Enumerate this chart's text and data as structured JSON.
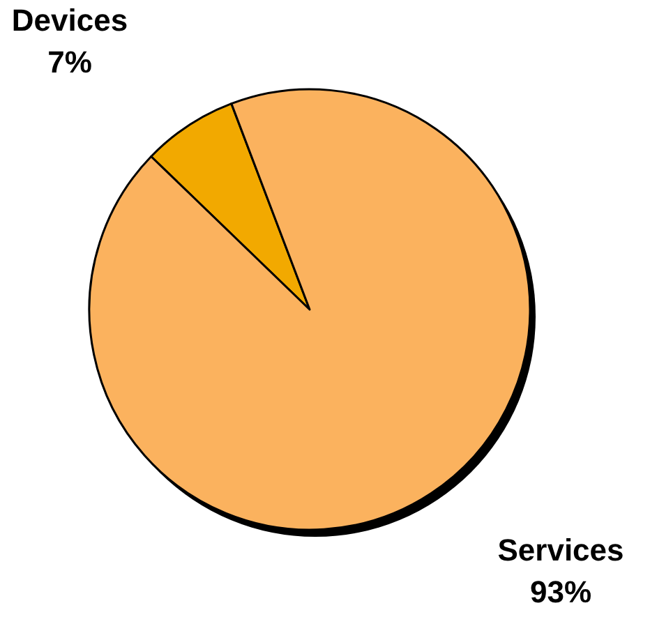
{
  "chart_data": {
    "type": "pie",
    "categories": [
      "Devices",
      "Services"
    ],
    "values": [
      7,
      93
    ],
    "value_labels": [
      "7%",
      "93%"
    ],
    "colors": [
      "#f2a900",
      "#fbb25e"
    ]
  }
}
